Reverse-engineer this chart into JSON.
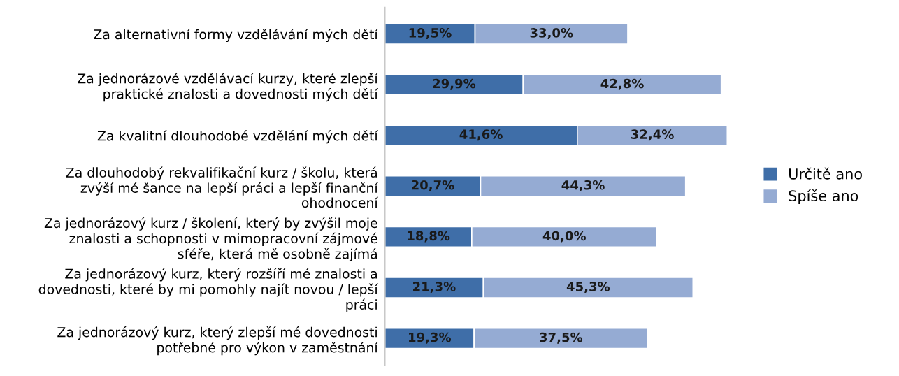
{
  "chart_data": {
    "type": "bar",
    "orientation": "horizontal",
    "stacked": true,
    "legend": "right",
    "grid": false,
    "tick_labels": "y",
    "categories": [
      "Za alternativní formy vzdělávání mých dětí",
      "Za jednorázové vzdělávací kurzy, které zlepší\npraktické znalosti a dovednosti mých dětí",
      "Za kvalitní dlouhodobé vzdělání mých dětí",
      "Za dlouhodobý rekvalifikační kurz / školu, která\nzvýší mé šance na lepší práci a lepší finanční\nohodnocení",
      "Za jednorázový kurz / školení, který by zvýšil moje\nznalosti a schopnosti v mimopracovní zájmové\nsféře, která mě osobně zajímá",
      "Za jednorázový kurz, který rozšíří mé znalosti a\ndovednosti, které by mi pomohly najít novou / lepší\npráci",
      "Za jednorázový kurz, který zlepší mé dovednosti\npotřebné pro výkon v zaměstnání"
    ],
    "series": [
      {
        "name": "Určitě ano",
        "color": "#3f6ea8",
        "values": [
          19.5,
          29.9,
          41.6,
          20.7,
          18.8,
          21.3,
          19.3
        ],
        "value_labels": [
          "19,5%",
          "29,9%",
          "41,6%",
          "20,7%",
          "18,8%",
          "21,3%",
          "19,3%"
        ]
      },
      {
        "name": "Spíše ano",
        "color": "#95abd3",
        "values": [
          33.0,
          42.8,
          32.4,
          44.3,
          40.0,
          45.3,
          37.5
        ],
        "value_labels": [
          "33,0%",
          "42,8%",
          "32,4%",
          "44,3%",
          "40,0%",
          "45,3%",
          "37,5%"
        ]
      }
    ]
  }
}
